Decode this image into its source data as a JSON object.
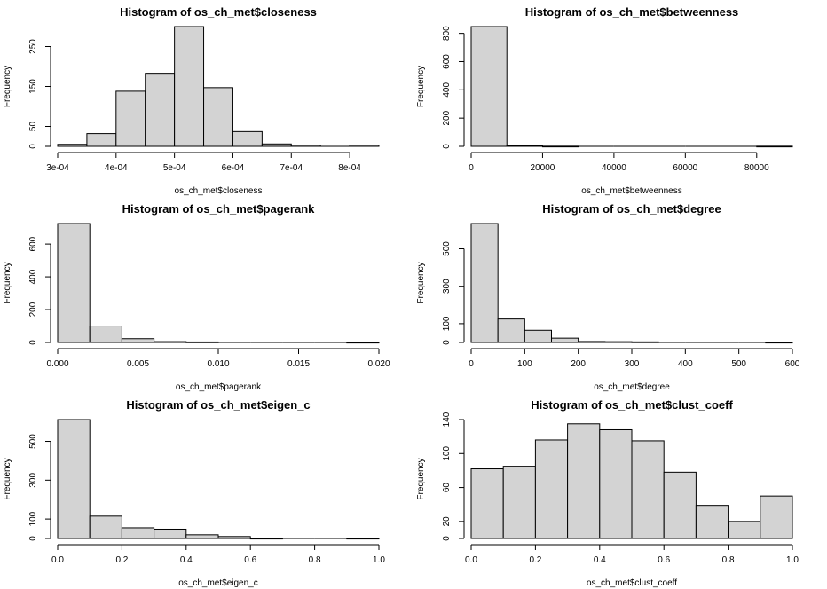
{
  "colors": {
    "bar_fill": "#d3d3d3",
    "bar_stroke": "#000000",
    "background": "#ffffff"
  },
  "chart_data": [
    {
      "type": "bar",
      "title": "Histogram of os_ch_met$closeness",
      "xlabel": "os_ch_met$closeness",
      "ylabel": "Frequency",
      "bin_edges": [
        0.0003,
        0.00035,
        0.0004,
        0.00045,
        0.0005,
        0.00055,
        0.0006,
        0.00065,
        0.0007,
        0.00075,
        0.0008,
        0.00085
      ],
      "values": [
        5,
        32,
        138,
        183,
        300,
        147,
        37,
        6,
        3,
        0,
        3
      ],
      "xlim": [
        0.0003,
        0.00085
      ],
      "ylim": [
        0,
        300
      ],
      "xticks": [
        0.0003,
        0.0004,
        0.0005,
        0.0006,
        0.0007,
        0.0008
      ],
      "xtick_labels": [
        "3e-04",
        "4e-04",
        "5e-04",
        "6e-04",
        "7e-04",
        "8e-04"
      ],
      "yticks": [
        0,
        50,
        150,
        250
      ],
      "ytick_labels": [
        "0",
        "50",
        "150",
        "250"
      ]
    },
    {
      "type": "bar",
      "title": "Histogram of os_ch_met$betweenness",
      "xlabel": "os_ch_met$betweenness",
      "ylabel": "Frequency",
      "bin_edges": [
        0,
        10000,
        20000,
        30000,
        40000,
        50000,
        60000,
        70000,
        80000,
        90000
      ],
      "values": [
        848,
        6,
        1,
        0,
        0,
        0,
        0,
        0,
        1
      ],
      "xlim": [
        0,
        90000
      ],
      "ylim": [
        0,
        848
      ],
      "xticks": [
        0,
        20000,
        40000,
        60000,
        80000
      ],
      "xtick_labels": [
        "0",
        "20000",
        "40000",
        "60000",
        "80000"
      ],
      "yticks": [
        0,
        200,
        400,
        600,
        800
      ],
      "ytick_labels": [
        "0",
        "200",
        "400",
        "600",
        "800"
      ]
    },
    {
      "type": "bar",
      "title": "Histogram of os_ch_met$pagerank",
      "xlabel": "os_ch_met$pagerank",
      "ylabel": "Frequency",
      "bin_edges": [
        0,
        0.002,
        0.004,
        0.006,
        0.008,
        0.01,
        0.012,
        0.014,
        0.016,
        0.018,
        0.02
      ],
      "values": [
        725,
        100,
        23,
        5,
        3,
        0,
        0,
        0,
        0,
        1
      ],
      "xlim": [
        0,
        0.02
      ],
      "ylim": [
        0,
        725
      ],
      "xticks": [
        0,
        0.005,
        0.01,
        0.015,
        0.02
      ],
      "xtick_labels": [
        "0.000",
        "0.005",
        "0.010",
        "0.015",
        "0.020"
      ],
      "yticks": [
        0,
        200,
        400,
        600
      ],
      "ytick_labels": [
        "0",
        "200",
        "400",
        "600"
      ]
    },
    {
      "type": "bar",
      "title": "Histogram of os_ch_met$degree",
      "xlabel": "os_ch_met$degree",
      "ylabel": "Frequency",
      "bin_edges": [
        0,
        50,
        100,
        150,
        200,
        250,
        300,
        350,
        400,
        450,
        500,
        550,
        600
      ],
      "values": [
        635,
        125,
        65,
        23,
        5,
        4,
        3,
        0,
        0,
        0,
        0,
        1
      ],
      "xlim": [
        0,
        600
      ],
      "ylim": [
        0,
        635
      ],
      "xticks": [
        0,
        100,
        200,
        300,
        400,
        500,
        600
      ],
      "xtick_labels": [
        "0",
        "100",
        "200",
        "300",
        "400",
        "500",
        "600"
      ],
      "yticks": [
        0,
        100,
        300,
        500
      ],
      "ytick_labels": [
        "0",
        "100",
        "300",
        "500"
      ]
    },
    {
      "type": "bar",
      "title": "Histogram of os_ch_met$eigen_c",
      "xlabel": "os_ch_met$eigen_c",
      "ylabel": "Frequency",
      "bin_edges": [
        0,
        0.1,
        0.2,
        0.3,
        0.4,
        0.5,
        0.6,
        0.7,
        0.8,
        0.9,
        1.0
      ],
      "values": [
        612,
        115,
        55,
        48,
        19,
        10,
        1,
        0,
        0,
        1
      ],
      "xlim": [
        0,
        1
      ],
      "ylim": [
        0,
        612
      ],
      "xticks": [
        0,
        0.2,
        0.4,
        0.6,
        0.8,
        1.0
      ],
      "xtick_labels": [
        "0.0",
        "0.2",
        "0.4",
        "0.6",
        "0.8",
        "1.0"
      ],
      "yticks": [
        0,
        100,
        300,
        500
      ],
      "ytick_labels": [
        "0",
        "100",
        "300",
        "500"
      ]
    },
    {
      "type": "bar",
      "title": "Histogram of os_ch_met$clust_coeff",
      "xlabel": "os_ch_met$clust_coeff",
      "ylabel": "Frequency",
      "bin_edges": [
        0,
        0.1,
        0.2,
        0.3,
        0.4,
        0.5,
        0.6,
        0.7,
        0.8,
        0.9,
        1.0
      ],
      "values": [
        82,
        85,
        116,
        135,
        128,
        115,
        78,
        39,
        20,
        50
      ],
      "xlim": [
        0,
        1
      ],
      "ylim": [
        0,
        140
      ],
      "xticks": [
        0,
        0.2,
        0.4,
        0.6,
        0.8,
        1.0
      ],
      "xtick_labels": [
        "0.0",
        "0.2",
        "0.4",
        "0.6",
        "0.8",
        "1.0"
      ],
      "yticks": [
        0,
        20,
        60,
        100,
        140
      ],
      "ytick_labels": [
        "0",
        "20",
        "60",
        "100",
        "140"
      ]
    }
  ]
}
